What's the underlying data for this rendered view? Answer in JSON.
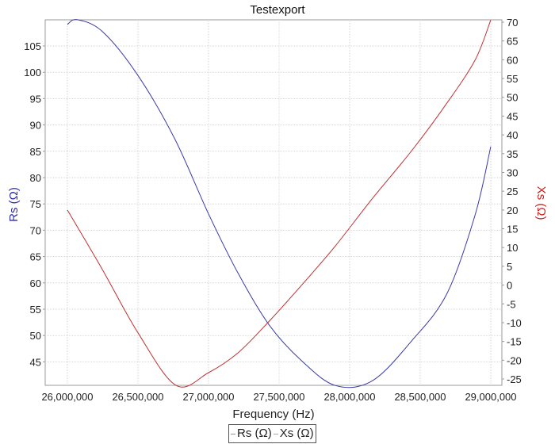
{
  "chart_data": {
    "type": "line",
    "title": "Testexport",
    "xlabel": "Frequency (Hz)",
    "ylabel_left": "Rs (Ω)",
    "ylabel_right": "Xs (Ω)",
    "xlim": [
      25840000,
      29080000
    ],
    "ylim_left": [
      39.5,
      110.2
    ],
    "ylim_right": [
      -27.2,
      70.8
    ],
    "x_ticks": [
      26000000,
      26500000,
      27000000,
      27500000,
      28000000,
      28500000,
      29000000
    ],
    "x_tick_labels": [
      "26,000,000",
      "26,500,000",
      "27,000,000",
      "27,500,000",
      "28,000,000",
      "28,500,000",
      "29,000,000"
    ],
    "y_left_ticks": [
      45,
      50,
      55,
      60,
      65,
      70,
      75,
      80,
      85,
      90,
      95,
      100,
      105
    ],
    "y_right_ticks": [
      -25,
      -20,
      -15,
      -10,
      -5,
      0,
      5,
      10,
      15,
      20,
      25,
      30,
      35,
      40,
      45,
      50,
      55,
      60,
      65,
      70
    ],
    "grid": true,
    "legend_position": "bottom",
    "series": [
      {
        "name": "Rs (Ω)",
        "axis": "left",
        "color": "#3a3aa8",
        "x": [
          26000000,
          26070000,
          26250000,
          26500000,
          26760000,
          27000000,
          27210000,
          27430000,
          27660000,
          27900000,
          28160000,
          28440000,
          28690000,
          28890000,
          29000000
        ],
        "values": [
          109.1,
          110.0,
          107.7,
          99.4,
          87.4,
          73.1,
          61.8,
          52.0,
          45.2,
          40.5,
          41.4,
          49.0,
          58.0,
          73.0,
          85.9
        ]
      },
      {
        "name": "Xs (Ω)",
        "axis": "right",
        "color": "#c03030",
        "x": [
          26000000,
          26250000,
          26500000,
          26770000,
          27000000,
          27210000,
          27430000,
          27660000,
          27900000,
          28160000,
          28440000,
          28690000,
          28890000,
          29000000
        ],
        "values": [
          20.0,
          4.0,
          -12.7,
          -26.7,
          -23.3,
          -18.0,
          -9.6,
          0.0,
          10.5,
          23.0,
          35.8,
          48.5,
          60.0,
          70.6
        ]
      }
    ]
  },
  "legend": {
    "items": [
      {
        "label": "Rs (Ω)",
        "color": "#8a8ad0"
      },
      {
        "label": "Xs (Ω)",
        "color": "#e09090"
      }
    ]
  }
}
